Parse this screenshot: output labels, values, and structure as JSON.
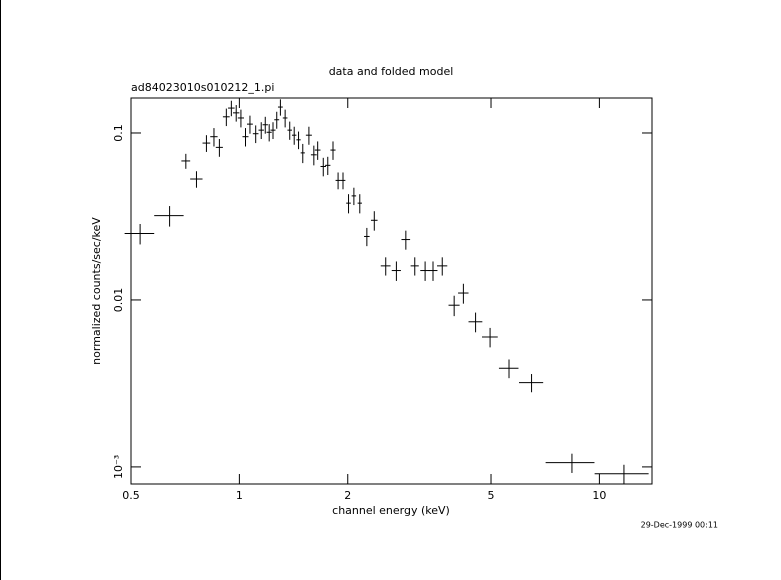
{
  "chart_data": {
    "type": "scatter",
    "title": "data and folded model",
    "subtitle": "ad84023010s010212_1.pi",
    "x_label": "channel energy (keV)",
    "y_label": "normalized counts/sec/keV",
    "timestamp": "29-Dec-1999 00:11",
    "x_scale": "log",
    "y_scale": "log",
    "color": "#000000",
    "xlim": [
      0.5,
      14
    ],
    "ylim": [
      0.00079,
      0.162
    ],
    "xticks": [
      0.5,
      1,
      2,
      5,
      10
    ],
    "yticks": [
      {
        "value": 0.001,
        "label": "10⁻³"
      },
      0.01,
      0.1
    ],
    "x": [
      0.53,
      0.64,
      0.71,
      0.76,
      0.81,
      0.85,
      0.88,
      0.92,
      0.95,
      0.98,
      1.01,
      1.04,
      1.07,
      1.11,
      1.15,
      1.18,
      1.21,
      1.24,
      1.27,
      1.3,
      1.34,
      1.38,
      1.42,
      1.46,
      1.5,
      1.56,
      1.61,
      1.65,
      1.71,
      1.76,
      1.82,
      1.88,
      1.94,
      2.01,
      2.08,
      2.16,
      2.26,
      2.37,
      2.55,
      2.73,
      2.9,
      3.07,
      3.28,
      3.45,
      3.66,
      3.95,
      4.19,
      4.53,
      4.97,
      5.61,
      6.48,
      8.39,
      11.7
    ],
    "xerr": [
      0.05,
      0.06,
      0.02,
      0.03,
      0.02,
      0.02,
      0.02,
      0.02,
      0.02,
      0.02,
      0.02,
      0.02,
      0.02,
      0.02,
      0.02,
      0.02,
      0.02,
      0.02,
      0.02,
      0.02,
      0.02,
      0.02,
      0.02,
      0.02,
      0.02,
      0.03,
      0.03,
      0.03,
      0.03,
      0.03,
      0.03,
      0.03,
      0.03,
      0.03,
      0.03,
      0.03,
      0.04,
      0.05,
      0.08,
      0.08,
      0.08,
      0.08,
      0.1,
      0.1,
      0.12,
      0.14,
      0.14,
      0.2,
      0.25,
      0.35,
      0.5,
      1.3,
      2.0
    ],
    "series": [
      {
        "name": "data",
        "values": [
          0.025,
          0.032,
          0.068,
          0.053,
          0.087,
          0.095,
          0.082,
          0.125,
          0.141,
          0.132,
          0.123,
          0.095,
          0.113,
          0.099,
          0.104,
          0.112,
          0.101,
          0.104,
          0.12,
          0.143,
          0.123,
          0.104,
          0.097,
          0.091,
          0.076,
          0.097,
          0.074,
          0.079,
          0.063,
          0.064,
          0.079,
          0.052,
          0.052,
          0.038,
          0.042,
          0.038,
          0.024,
          0.03,
          0.016,
          0.015,
          0.023,
          0.016,
          0.015,
          0.015,
          0.016,
          0.0093,
          0.011,
          0.0074,
          0.006,
          0.0039,
          0.0032,
          0.00106,
          0.00091
        ],
        "errors": [
          0.0035,
          0.0045,
          0.007,
          0.006,
          0.01,
          0.012,
          0.01,
          0.015,
          0.015,
          0.015,
          0.015,
          0.012,
          0.014,
          0.012,
          0.012,
          0.013,
          0.012,
          0.012,
          0.014,
          0.016,
          0.015,
          0.013,
          0.012,
          0.011,
          0.01,
          0.012,
          0.01,
          0.01,
          0.008,
          0.008,
          0.01,
          0.006,
          0.006,
          0.005,
          0.005,
          0.005,
          0.003,
          0.004,
          0.002,
          0.002,
          0.003,
          0.002,
          0.002,
          0.002,
          0.002,
          0.0013,
          0.0015,
          0.001,
          0.0008,
          0.0005,
          0.0004,
          0.00014,
          0.00012
        ]
      }
    ]
  }
}
